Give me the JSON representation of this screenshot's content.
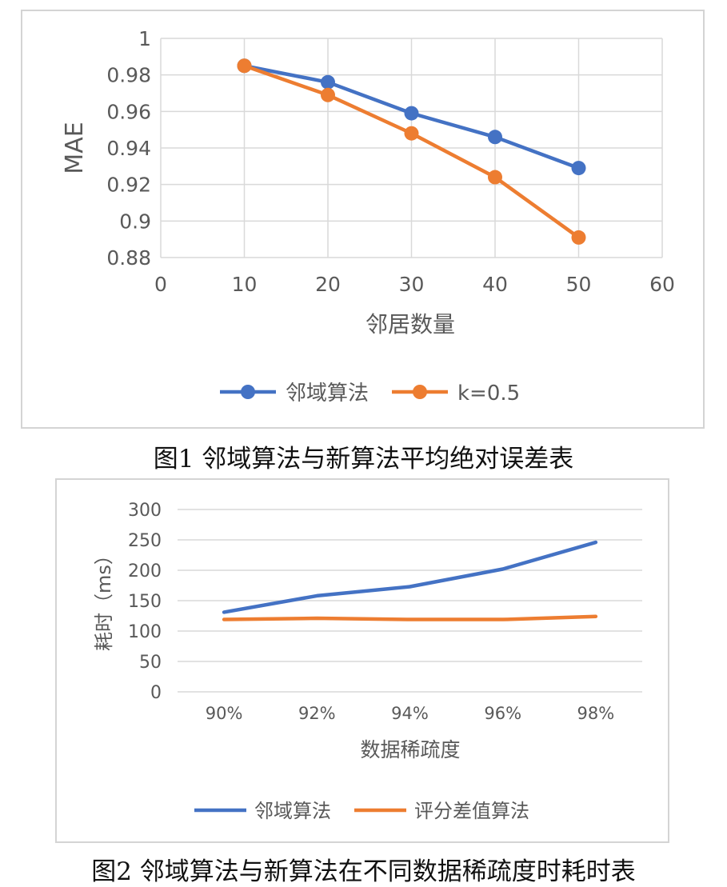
{
  "chart_data": [
    {
      "type": "line",
      "title": "",
      "xlabel": "邻居数量",
      "ylabel": "MAE",
      "xlim": [
        0,
        60
      ],
      "ylim": [
        0.88,
        1
      ],
      "xticks": [
        "0",
        "10",
        "20",
        "30",
        "40",
        "50",
        "60"
      ],
      "yticks": [
        "0.88",
        "0.9",
        "0.92",
        "0.94",
        "0.96",
        "0.98",
        "1"
      ],
      "grid": true,
      "legend": "bottom",
      "markers": true,
      "x": [
        10,
        20,
        30,
        40,
        50
      ],
      "series": [
        {
          "name": "邻域算法",
          "color": "#4472c4",
          "values": [
            0.985,
            0.976,
            0.959,
            0.946,
            0.929
          ]
        },
        {
          "name": "k=0.5",
          "color": "#ed7d31",
          "values": [
            0.985,
            0.969,
            0.948,
            0.924,
            0.891
          ]
        }
      ]
    },
    {
      "type": "line",
      "title": "",
      "xlabel": "数据稀疏度",
      "ylabel": "耗时（ms）",
      "categories": [
        "90%",
        "92%",
        "94%",
        "96%",
        "98%"
      ],
      "ylim": [
        0,
        300
      ],
      "yticks": [
        "0",
        "50",
        "100",
        "150",
        "200",
        "250",
        "300"
      ],
      "grid": true,
      "legend": "bottom",
      "markers": false,
      "series": [
        {
          "name": "邻域算法",
          "color": "#4472c4",
          "values": [
            131,
            158,
            173,
            202,
            246
          ]
        },
        {
          "name": "评分差值算法",
          "color": "#ed7d31",
          "values": [
            119,
            121,
            119,
            119,
            124
          ]
        }
      ]
    }
  ],
  "captions": {
    "fig1": "图1  邻域算法与新算法平均绝对误差表",
    "fig2": "图2  邻域算法与新算法在不同数据稀疏度时耗时表"
  }
}
